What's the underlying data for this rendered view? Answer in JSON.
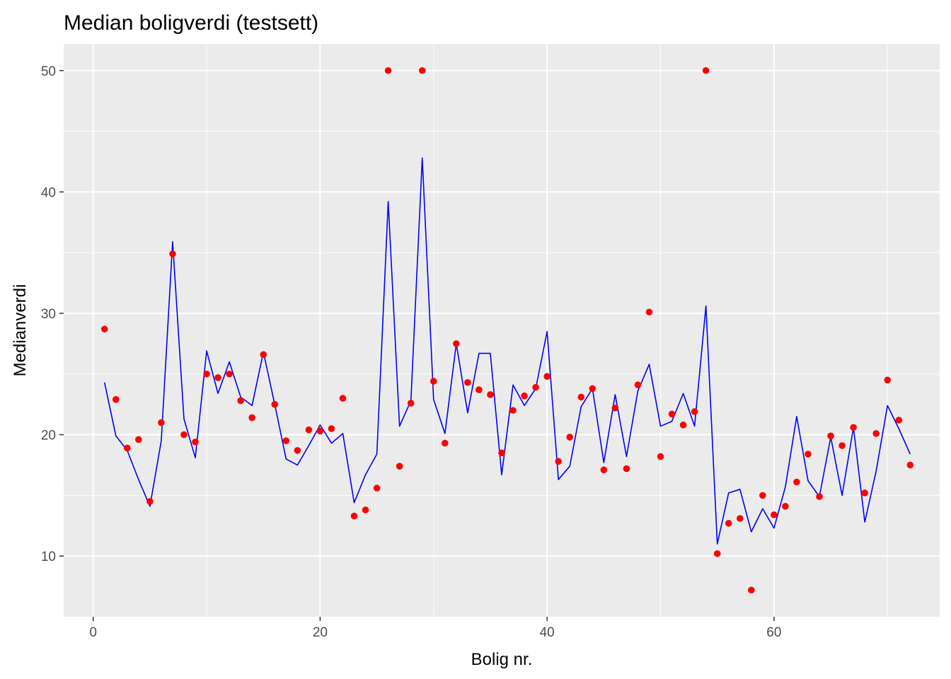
{
  "chart_data": {
    "type": "line",
    "title": "Median boligverdi (testsett)",
    "xlabel": "Bolig nr.",
    "ylabel": "Medianverdi",
    "xlim": [
      -2.6,
      74.6
    ],
    "ylim": [
      5.0,
      52.2
    ],
    "x_ticks": [
      0,
      20,
      40,
      60
    ],
    "y_ticks": [
      10,
      20,
      30,
      40,
      50
    ],
    "x_minor": [
      10,
      30,
      50,
      70
    ],
    "y_minor": [
      15,
      25,
      35,
      45
    ],
    "grid": true,
    "background_color": "#ebebeb",
    "series": [
      {
        "type": "line",
        "color": "#0000ff",
        "x": [
          1,
          2,
          3,
          4,
          5,
          6,
          7,
          8,
          9,
          10,
          11,
          12,
          13,
          14,
          15,
          16,
          17,
          18,
          19,
          20,
          21,
          22,
          23,
          24,
          25,
          26,
          27,
          28,
          29,
          30,
          31,
          32,
          33,
          34,
          35,
          36,
          37,
          38,
          39,
          40,
          41,
          42,
          43,
          44,
          45,
          46,
          47,
          48,
          49,
          50,
          51,
          52,
          53,
          54,
          55,
          56,
          57,
          58,
          59,
          60,
          61,
          62,
          63,
          64,
          65,
          66,
          67,
          68,
          69,
          70,
          71,
          72
        ],
        "y": [
          24.3,
          19.9,
          18.7,
          16.3,
          14.1,
          19.5,
          35.9,
          21.3,
          18.1,
          26.9,
          23.4,
          26.0,
          23.1,
          22.4,
          26.8,
          22.5,
          18.0,
          17.5,
          19.1,
          20.8,
          19.3,
          20.1,
          14.4,
          16.7,
          18.4,
          39.2,
          20.7,
          22.8,
          42.8,
          22.9,
          20.1,
          27.5,
          21.8,
          26.7,
          26.7,
          16.7,
          24.1,
          22.4,
          23.8,
          28.5,
          16.3,
          17.4,
          22.3,
          23.8,
          17.7,
          23.3,
          18.2,
          23.6,
          25.8,
          20.7,
          21.1,
          23.4,
          20.7,
          30.6,
          11.0,
          15.2,
          15.5,
          12.0,
          13.9,
          12.3,
          15.7,
          21.5,
          16.2,
          14.9,
          19.8,
          15.0,
          20.6,
          12.8,
          17.0,
          22.4,
          20.5,
          18.4
        ]
      },
      {
        "type": "scatter",
        "color": "#ff0000",
        "x": [
          1,
          2,
          3,
          4,
          5,
          6,
          7,
          8,
          9,
          10,
          11,
          12,
          13,
          14,
          15,
          16,
          17,
          18,
          19,
          20,
          21,
          22,
          23,
          24,
          25,
          26,
          27,
          28,
          29,
          30,
          31,
          32,
          33,
          34,
          35,
          36,
          37,
          38,
          39,
          40,
          41,
          42,
          43,
          44,
          45,
          46,
          47,
          48,
          49,
          50,
          51,
          52,
          53,
          54,
          55,
          56,
          57,
          58,
          59,
          60,
          61,
          62,
          63,
          64,
          65,
          66,
          67,
          68,
          69,
          70,
          71,
          72
        ],
        "y": [
          28.7,
          22.9,
          18.9,
          19.6,
          14.5,
          21.0,
          34.9,
          20.0,
          19.4,
          25.0,
          24.7,
          25.0,
          22.8,
          21.4,
          26.6,
          22.5,
          19.5,
          18.7,
          20.4,
          20.3,
          20.5,
          23.0,
          13.3,
          13.8,
          15.6,
          50.0,
          17.4,
          22.6,
          50.0,
          24.4,
          19.3,
          27.5,
          24.3,
          23.7,
          23.3,
          18.5,
          22.0,
          23.2,
          23.9,
          24.8,
          17.8,
          19.8,
          23.1,
          23.8,
          17.1,
          22.2,
          17.2,
          24.1,
          30.1,
          18.2,
          21.7,
          20.8,
          21.9,
          50.0,
          10.2,
          12.7,
          13.1,
          7.2,
          15.0,
          13.4,
          14.1,
          16.1,
          18.4,
          14.9,
          19.9,
          19.1,
          20.6,
          15.2,
          20.1,
          24.5,
          21.2,
          17.5
        ]
      }
    ]
  }
}
